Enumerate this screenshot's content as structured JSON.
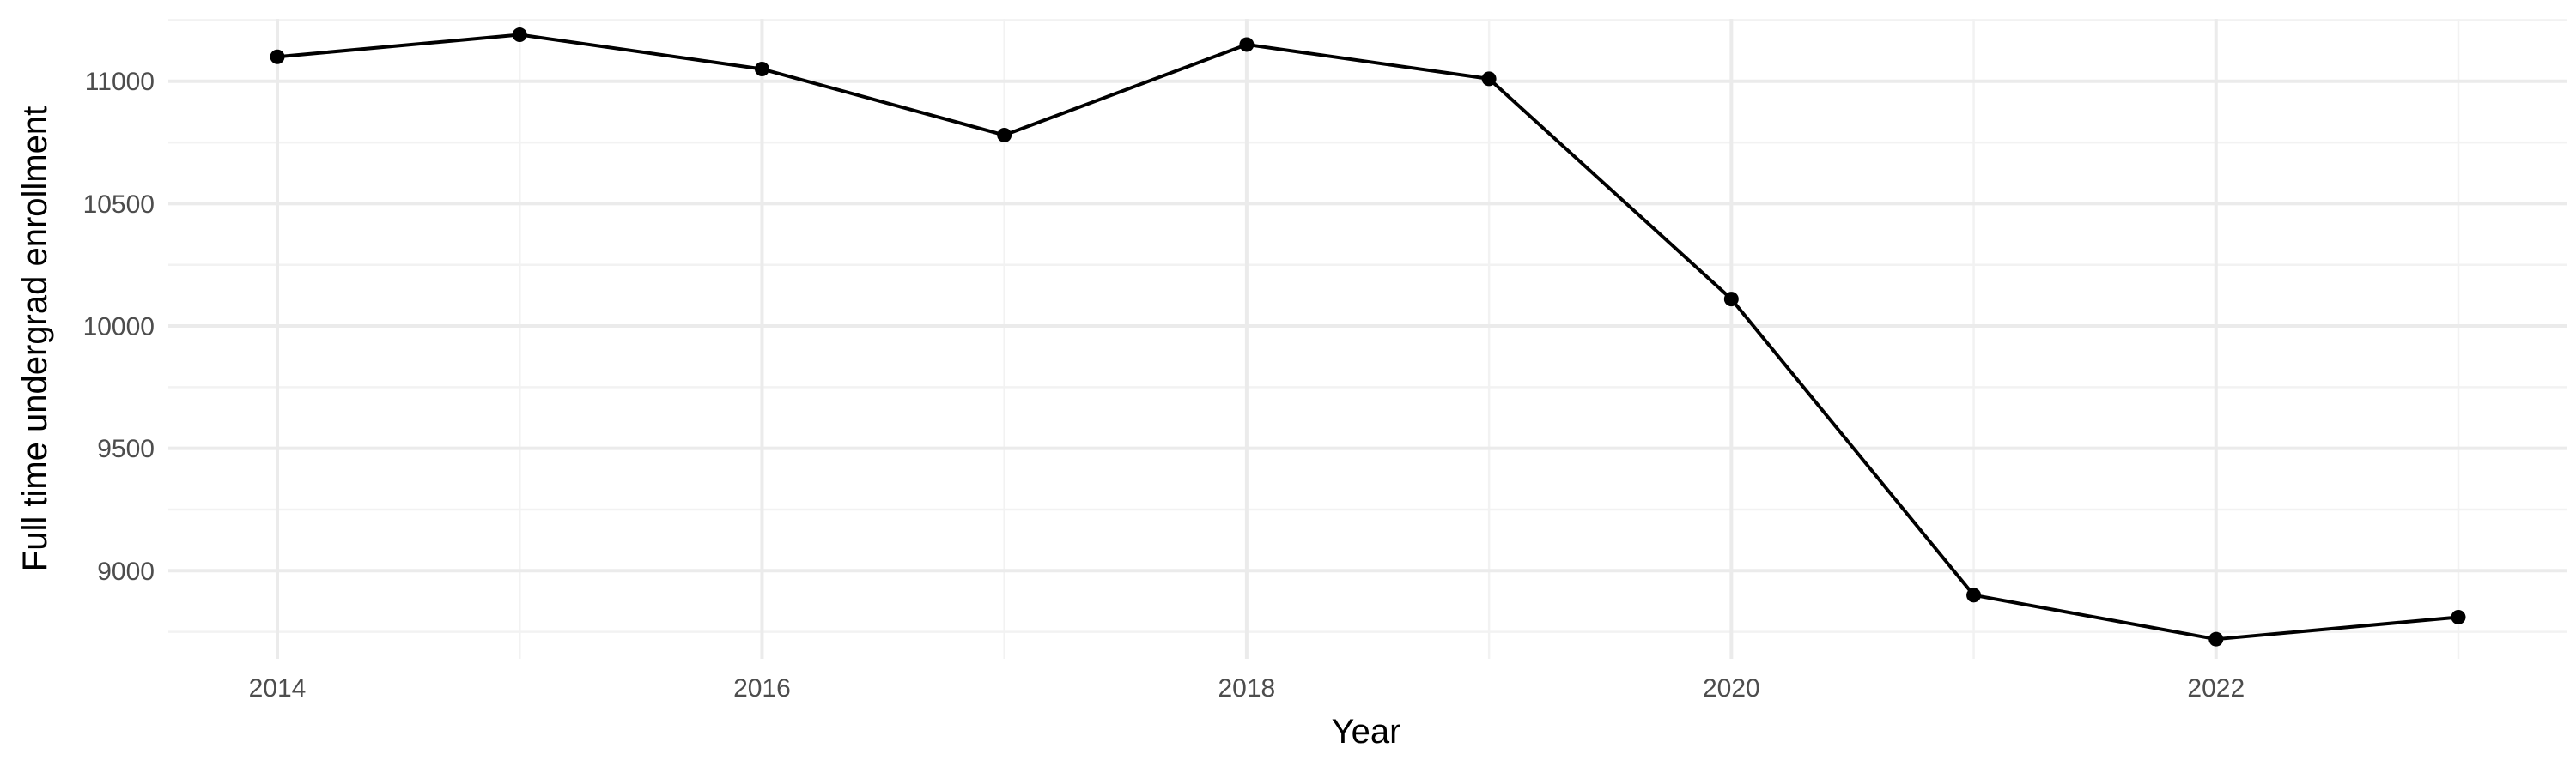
{
  "chart_data": {
    "type": "line",
    "title": "",
    "xlabel": "Year",
    "ylabel": "Full time undergrad enrollment",
    "x": [
      2014,
      2015,
      2016,
      2017,
      2018,
      2019,
      2020,
      2021,
      2022,
      2023
    ],
    "series": [
      {
        "values": [
          11100,
          11190,
          11050,
          10780,
          11150,
          11010,
          10110,
          8900,
          8720,
          8810
        ]
      }
    ],
    "xlim": [
      2013.55,
      2023.45
    ],
    "ylim": [
      8640,
      11255
    ],
    "x_ticks": [
      2014,
      2016,
      2018,
      2020,
      2022
    ],
    "x_tick_labels": [
      "2014",
      "2016",
      "2018",
      "2020",
      "2022"
    ],
    "y_ticks": [
      9000,
      9500,
      10000,
      10500,
      11000
    ],
    "y_tick_labels": [
      "9000",
      "9500",
      "10000",
      "10500",
      "11000"
    ],
    "x_minor_ticks": [
      2015,
      2017,
      2019,
      2021,
      2023
    ],
    "y_minor_ticks": [
      8750,
      9250,
      9750,
      10250,
      10750,
      11250
    ],
    "grid": true,
    "legend": "none",
    "colors": {
      "line": "#000000",
      "point": "#000000",
      "grid_major": "#ebebeb",
      "grid_minor": "#f2f2f2",
      "tick_text": "#4d4d4d",
      "axis_title": "#000000"
    }
  }
}
